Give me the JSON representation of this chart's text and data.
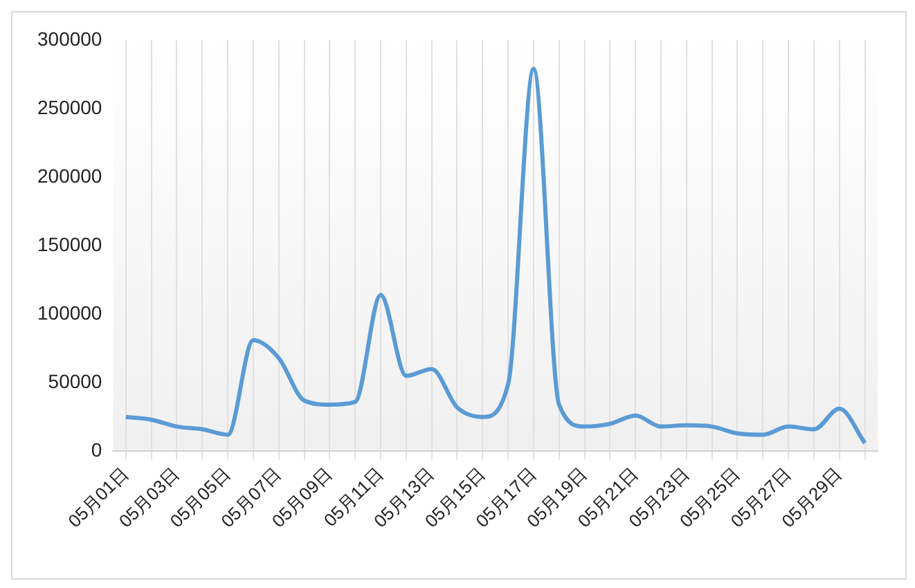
{
  "chart_data": {
    "type": "line",
    "categories": [
      "05月01日",
      null,
      "05月03日",
      null,
      "05月05日",
      null,
      "05月07日",
      null,
      "05月09日",
      null,
      "05月11日",
      null,
      "05月13日",
      null,
      "05月15日",
      null,
      "05月17日",
      null,
      "05月19日",
      null,
      "05月21日",
      null,
      "05月23日",
      null,
      "05月25日",
      null,
      "05月27日",
      null,
      "05月29日",
      null
    ],
    "series": [
      {
        "color": "#5b9bd5",
        "values": [
          25000,
          23000,
          18000,
          16000,
          12000,
          81000,
          68000,
          37000,
          34000,
          36000,
          114000,
          55000,
          60000,
          32000,
          25000,
          49000,
          279000,
          34000,
          18000,
          20000,
          26000,
          18000,
          19000,
          18000,
          13000,
          12000,
          18000,
          16000,
          31000,
          6000
        ]
      }
    ],
    "ylim": [
      0,
      300000
    ],
    "yticks": [
      0,
      50000,
      100000,
      150000,
      200000,
      250000,
      300000
    ],
    "grid": "x",
    "legend": false,
    "marker": "none",
    "line_style": "solid"
  }
}
